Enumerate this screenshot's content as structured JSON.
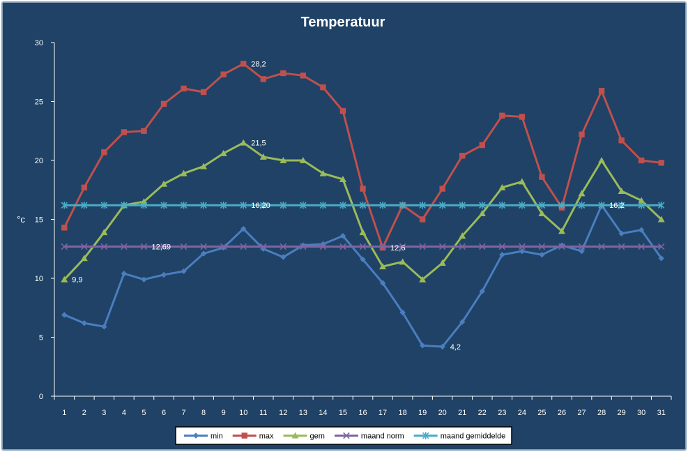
{
  "chart_data": {
    "type": "line",
    "title": "Temperatuur",
    "ylabel": "°c",
    "xlabel": "",
    "ylim": [
      0,
      30
    ],
    "yticks": [
      0,
      5,
      10,
      15,
      20,
      25,
      30
    ],
    "categories": [
      "1",
      "2",
      "3",
      "4",
      "5",
      "6",
      "7",
      "8",
      "9",
      "10",
      "11",
      "12",
      "13",
      "14",
      "15",
      "16",
      "17",
      "18",
      "19",
      "20",
      "21",
      "22",
      "23",
      "24",
      "25",
      "26",
      "27",
      "28",
      "29",
      "30",
      "31"
    ],
    "grid": false,
    "legend_position": "bottom",
    "series": [
      {
        "name": "min",
        "color": "#4a7ebf",
        "marker": "diamond",
        "values": [
          6.9,
          6.2,
          5.9,
          10.4,
          9.9,
          10.3,
          10.6,
          12.1,
          12.6,
          14.2,
          12.5,
          11.8,
          12.8,
          12.9,
          13.6,
          11.6,
          9.6,
          7.1,
          4.3,
          4.2,
          6.3,
          8.9,
          12.0,
          12.3,
          12.0,
          12.8,
          12.3,
          16.2,
          13.8,
          14.1,
          11.7
        ]
      },
      {
        "name": "max",
        "color": "#c0504d",
        "marker": "square",
        "values": [
          14.3,
          17.7,
          20.7,
          22.4,
          22.5,
          24.8,
          26.1,
          25.8,
          27.3,
          28.2,
          26.9,
          27.4,
          27.2,
          26.2,
          24.2,
          17.6,
          12.6,
          16.2,
          15.0,
          17.6,
          20.4,
          21.3,
          23.8,
          23.7,
          18.6,
          16.0,
          22.2,
          25.9,
          21.7,
          20.0,
          19.8
        ]
      },
      {
        "name": "gem",
        "color": "#9bbb59",
        "marker": "triangle",
        "values": [
          9.9,
          11.7,
          13.9,
          16.2,
          16.5,
          18.0,
          18.9,
          19.5,
          20.6,
          21.5,
          20.3,
          20.0,
          20.0,
          18.9,
          18.4,
          13.9,
          11.0,
          11.4,
          9.9,
          11.3,
          13.6,
          15.5,
          17.7,
          18.2,
          15.5,
          14.0,
          17.2,
          20.0,
          17.4,
          16.6,
          15.0
        ]
      },
      {
        "name": "maand norm",
        "color": "#8064a2",
        "marker": "x",
        "values": [
          12.69,
          12.69,
          12.69,
          12.69,
          12.69,
          12.69,
          12.69,
          12.69,
          12.69,
          12.69,
          12.69,
          12.69,
          12.69,
          12.69,
          12.69,
          12.69,
          12.69,
          12.69,
          12.69,
          12.69,
          12.69,
          12.69,
          12.69,
          12.69,
          12.69,
          12.69,
          12.69,
          12.69,
          12.69,
          12.69,
          12.69
        ]
      },
      {
        "name": "maand gemiddelde",
        "color": "#4bacc6",
        "marker": "star",
        "values": [
          16.2,
          16.2,
          16.2,
          16.2,
          16.2,
          16.2,
          16.2,
          16.2,
          16.2,
          16.2,
          16.2,
          16.2,
          16.2,
          16.2,
          16.2,
          16.2,
          16.2,
          16.2,
          16.2,
          16.2,
          16.2,
          16.2,
          16.2,
          16.2,
          16.2,
          16.2,
          16.2,
          16.2,
          16.2,
          16.2,
          16.2
        ]
      }
    ],
    "annotations": [
      {
        "text": "28,2",
        "x": "10",
        "y": 28.2
      },
      {
        "text": "21,5",
        "x": "10",
        "y": 21.5
      },
      {
        "text": "16,20",
        "x": "10",
        "y": 16.2
      },
      {
        "text": "12,69",
        "x": "5",
        "y": 12.69
      },
      {
        "text": "9,9",
        "x": "1",
        "y": 9.9
      },
      {
        "text": "12,6",
        "x": "17",
        "y": 12.6
      },
      {
        "text": "4,2",
        "x": "20",
        "y": 4.2
      },
      {
        "text": "16,2",
        "x": "28",
        "y": 16.2
      }
    ]
  },
  "colors": {
    "background": "#1f4266",
    "frame_border": "#88a0b8",
    "text": "#ffffff",
    "axis": "#ffffff",
    "legend_background": "#ffffff",
    "legend_border": "#000000",
    "legend_text": "#000000"
  }
}
